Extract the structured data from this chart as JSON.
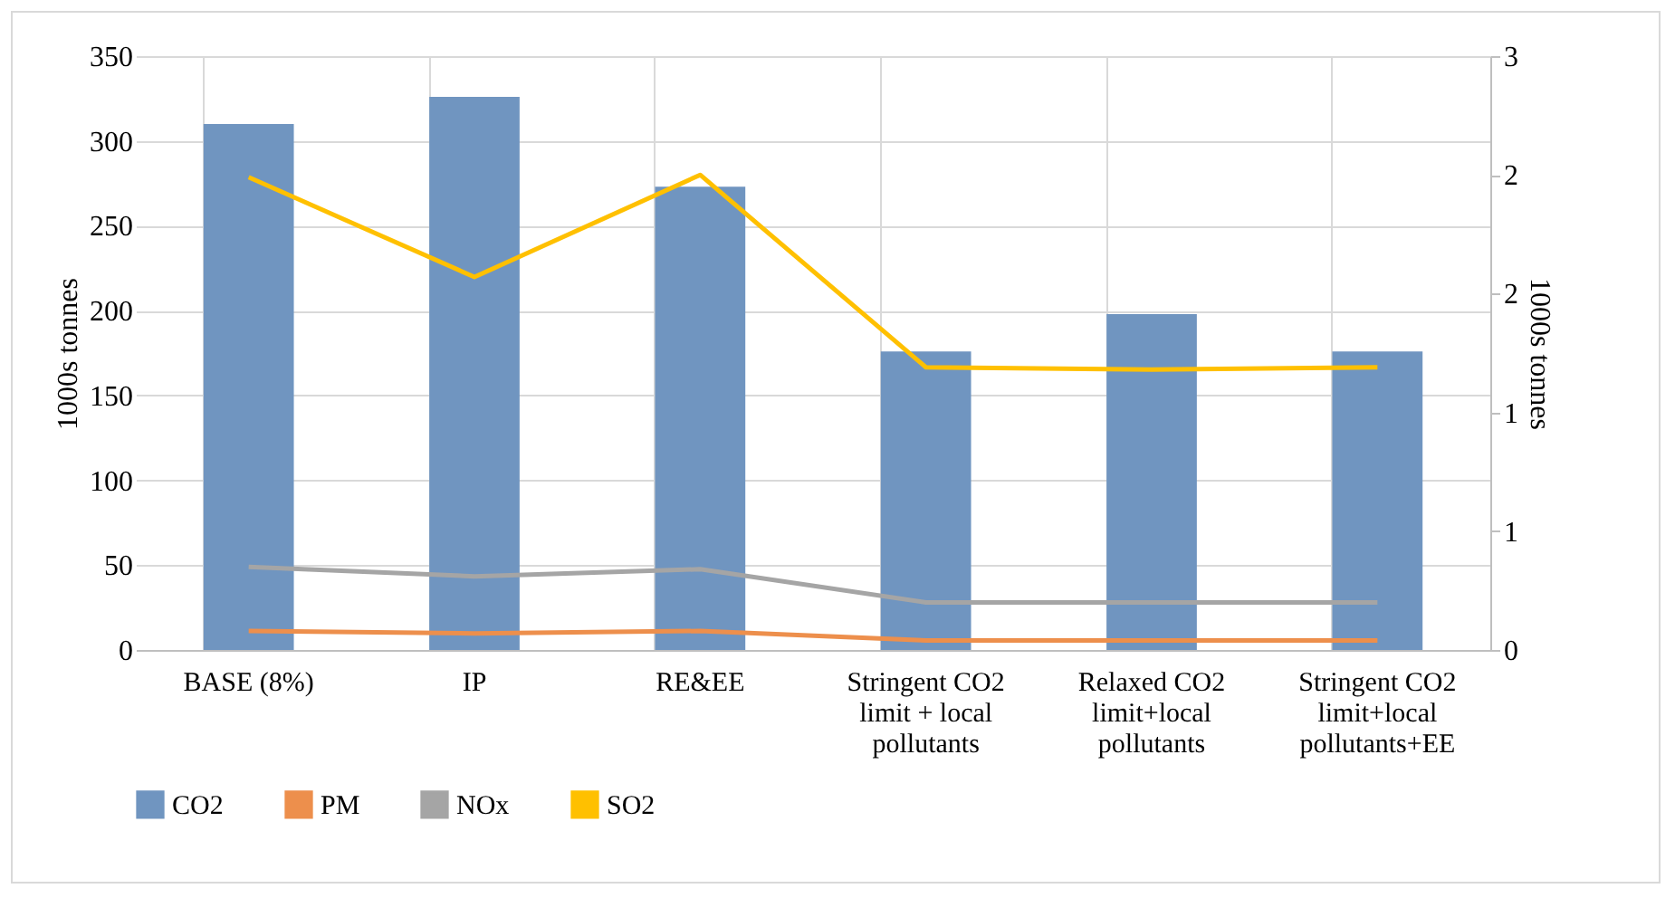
{
  "chart_data": {
    "type": "bar",
    "ylabel": "1000s tonnes",
    "y2label": "1000s tonnes",
    "categories": [
      "BASE (8%)",
      "IP",
      "RE&EE",
      "Stringent CO2 limit + local pollutants",
      "Relaxed CO2 limit+local pollutants",
      "Stringent CO2 limit+local pollutants+EE"
    ],
    "series": [
      {
        "name": "CO2",
        "color": "#7095c0",
        "values": [
          310,
          326,
          273,
          176,
          198,
          176
        ]
      },
      {
        "name": "PM",
        "color": "#ed8f4c",
        "type": "line",
        "axis": "y2",
        "values": [
          0.08,
          0.07,
          0.08,
          0.04,
          0.04,
          0.04
        ]
      },
      {
        "name": "NOx",
        "color": "#a5a5a5",
        "type": "line",
        "axis": "y2",
        "values": [
          0.35,
          0.31,
          0.34,
          0.2,
          0.2,
          0.2
        ]
      },
      {
        "name": "SO2",
        "color": "#ffc000",
        "type": "line",
        "axis": "y2",
        "values": [
          1.99,
          1.57,
          2.0,
          1.19,
          1.18,
          1.19
        ]
      }
    ],
    "ylim": [
      0,
      350
    ],
    "yticks": [
      0,
      50,
      100,
      150,
      200,
      250,
      300,
      350
    ],
    "y2lim": [
      0,
      2.5
    ],
    "y2ticks": [
      0,
      {
        "value": 0.5,
        "label": "1"
      },
      1,
      {
        "value": 1.5,
        "label": "2"
      },
      2,
      {
        "value": 2.5,
        "label": "3"
      }
    ],
    "grid": true,
    "legend": "bottom"
  }
}
